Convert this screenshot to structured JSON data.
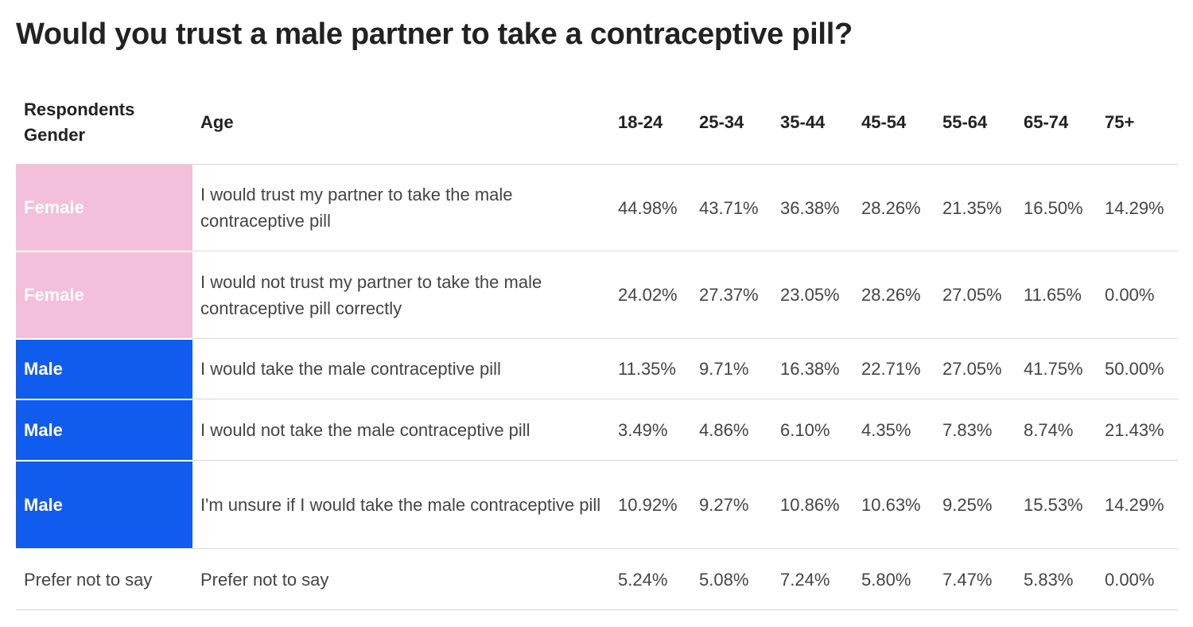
{
  "title": "Would you trust a male partner to take a contraceptive pill?",
  "colors": {
    "Female": "#f4bfdb",
    "Male": "#0f5cef",
    "Prefer not to say": "#ffffff"
  },
  "chart_data": {
    "type": "table",
    "title": "Would you trust a male partner to take a contraceptive pill?",
    "columns": [
      "Respondents Gender",
      "Age",
      "18-24",
      "25-34",
      "35-44",
      "45-54",
      "55-64",
      "65-74",
      "75+"
    ],
    "rows": [
      {
        "gender": "Female",
        "answer": "I would trust my partner to take the male contraceptive pill",
        "values": [
          "44.98%",
          "43.71%",
          "36.38%",
          "28.26%",
          "21.35%",
          "16.50%",
          "14.29%"
        ]
      },
      {
        "gender": "Female",
        "answer": "I would not trust my partner to take the male contraceptive pill correctly",
        "values": [
          "24.02%",
          "27.37%",
          "23.05%",
          "28.26%",
          "27.05%",
          "11.65%",
          "0.00%"
        ]
      },
      {
        "gender": "Male",
        "answer": "I would take the male contraceptive pill",
        "values": [
          "11.35%",
          "9.71%",
          "16.38%",
          "22.71%",
          "27.05%",
          "41.75%",
          "50.00%"
        ]
      },
      {
        "gender": "Male",
        "answer": "I would not take the male contraceptive pill",
        "values": [
          "3.49%",
          "4.86%",
          "6.10%",
          "4.35%",
          "7.83%",
          "8.74%",
          "21.43%"
        ]
      },
      {
        "gender": "Male",
        "answer": "I'm unsure if I would take the male contraceptive pill",
        "values": [
          "10.92%",
          "9.27%",
          "10.86%",
          "10.63%",
          "9.25%",
          "15.53%",
          "14.29%"
        ]
      },
      {
        "gender": "Prefer not to say",
        "answer": "Prefer not to say",
        "values": [
          "5.24%",
          "5.08%",
          "7.24%",
          "5.80%",
          "7.47%",
          "5.83%",
          "0.00%"
        ]
      }
    ]
  }
}
